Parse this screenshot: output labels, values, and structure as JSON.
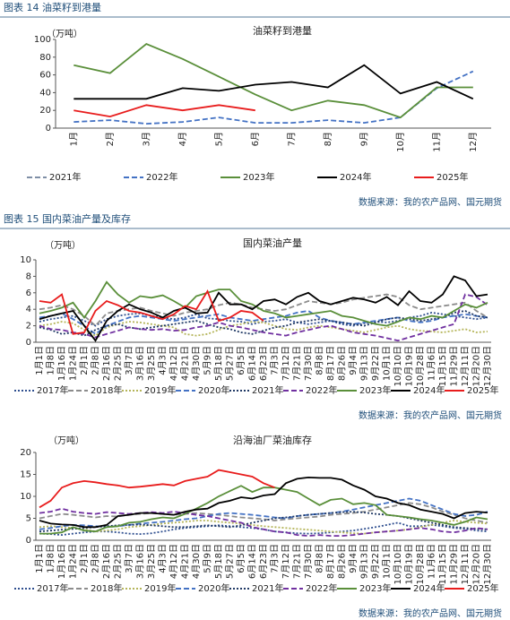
{
  "chart_data": [
    {
      "type": "line",
      "caption": "图表 14 油菜籽到港量",
      "title": "油菜籽到港量",
      "ylabel": "（万吨）",
      "source": "数据来源：我的农产品网、国元期货",
      "categories": [
        "1月",
        "2月",
        "3月",
        "4月",
        "5月",
        "6月",
        "7月",
        "8月",
        "9月",
        "10月",
        "11月",
        "12月"
      ],
      "ylim": [
        0,
        100
      ],
      "yticks": [
        0,
        20,
        40,
        60,
        80,
        100
      ],
      "grid": false,
      "series": [
        {
          "name": "2021年",
          "color": "#7f8fa6",
          "style": "dashed",
          "values": [
            null,
            null,
            null,
            null,
            null,
            null,
            null,
            null,
            null,
            null,
            null,
            null
          ]
        },
        {
          "name": "2022年",
          "color": "#4472c4",
          "style": "dashed",
          "values": [
            7,
            9,
            5,
            7,
            12,
            6,
            6,
            9,
            6,
            12,
            45,
            64
          ]
        },
        {
          "name": "2023年",
          "color": "#5a8f3a",
          "style": "solid",
          "values": [
            71,
            62,
            95,
            78,
            58,
            38,
            20,
            31,
            26,
            12,
            46,
            46
          ]
        },
        {
          "name": "2024年",
          "color": "#000000",
          "style": "solid",
          "values": [
            33,
            33,
            33,
            45,
            42,
            49,
            52,
            46,
            71,
            39,
            52,
            33
          ]
        },
        {
          "name": "2025年",
          "color": "#e81c1c",
          "style": "solid",
          "values": [
            20,
            13,
            26,
            20,
            26,
            20,
            null,
            null,
            null,
            null,
            null,
            null
          ]
        }
      ]
    },
    {
      "type": "line",
      "caption": "图表 15 国内菜油产量及库存",
      "title": "国内菜油产量",
      "ylabel": "（万吨）",
      "source": "数据来源：我的农产品网、国元期货",
      "categories": [
        "1月1日",
        "1月8日",
        "1月16日",
        "1月24日",
        "2月1日",
        "2月8日",
        "2月16日",
        "2月25日",
        "3月7日",
        "3月16日",
        "3月25日",
        "4月3日",
        "4月12日",
        "4月21日",
        "4月30日",
        "5月9日",
        "5月18日",
        "5月27日",
        "6月5日",
        "6月14日",
        "6月23日",
        "7月3日",
        "7月12日",
        "7月21日",
        "7月30日",
        "8月8日",
        "8月17日",
        "8月26日",
        "9月4日",
        "9月13日",
        "9月22日",
        "10月1日",
        "10月10日",
        "10月19日",
        "10月28日",
        "11月6日",
        "11月15日",
        "11月29日",
        "12月11日",
        "12月20日",
        "12月30日"
      ],
      "ylim": [
        0,
        10
      ],
      "yticks": [
        0,
        2,
        4,
        6,
        8,
        10
      ],
      "grid": false,
      "series": [
        {
          "name": "2017年",
          "color": "#2f4f8f",
          "style": "dotted",
          "values": [
            2.5,
            2.8,
            3,
            3.2,
            2.6,
            2,
            2.8,
            3.2,
            3.4,
            3.5,
            3.2,
            3,
            2.8,
            3,
            3.4,
            2.9,
            2.8,
            2.6,
            2.5,
            2.2,
            2.5,
            2.6,
            2.8,
            2.4,
            2.2,
            2.4,
            2.6,
            2.2,
            2,
            2.3,
            2.5,
            2.4,
            2.6,
            3,
            3.2,
            3.6,
            3.4,
            3.2,
            3,
            2.8,
            3
          ]
        },
        {
          "name": "2018年",
          "color": "#8c8c8c",
          "style": "dashed",
          "values": [
            4,
            4.2,
            4.5,
            4,
            3.2,
            2,
            3.5,
            3.8,
            4,
            4.2,
            3.8,
            3.5,
            3.2,
            3.6,
            3.8,
            4,
            4.5,
            4.8,
            4.6,
            4.2,
            4,
            3.8,
            4,
            4.5,
            5,
            4.8,
            4.6,
            4.8,
            5.2,
            5.4,
            5.6,
            5.8,
            5.5,
            4.5,
            4,
            4.2,
            4.4,
            4.6,
            4.8,
            3.8,
            3
          ]
        },
        {
          "name": "2019年",
          "color": "#b5b55a",
          "style": "dotted",
          "values": [
            2,
            2.2,
            2.5,
            2.3,
            1.5,
            0.8,
            1.8,
            2.2,
            2.5,
            2.4,
            2.2,
            2,
            1.8,
            1,
            0.8,
            1,
            1.5,
            2,
            2.2,
            2.5,
            2.4,
            2,
            1.6,
            1.5,
            1.8,
            2,
            1.8,
            1.6,
            1.4,
            1.2,
            1.5,
            1.8,
            2,
            1.6,
            1.4,
            1.3,
            1.2,
            1.4,
            1.6,
            1.2,
            1.3
          ]
        },
        {
          "name": "2020年",
          "color": "#4472c4",
          "style": "dashed",
          "values": [
            3,
            3.2,
            3.5,
            2.8,
            2,
            1,
            2,
            2.5,
            3,
            3.2,
            3,
            2.8,
            2.6,
            2.8,
            3,
            3.2,
            3.4,
            3,
            2.8,
            2.6,
            2.8,
            3,
            3.2,
            3.6,
            3.8,
            3,
            2.6,
            2.4,
            2.2,
            2.4,
            2.6,
            2.8,
            3,
            2.6,
            2.4,
            2.6,
            3,
            3.2,
            3.4,
            3.2,
            3
          ]
        },
        {
          "name": "2021年",
          "color": "#1f3864",
          "style": "dotted",
          "values": [
            1.8,
            1.5,
            1,
            1.2,
            0.8,
            1.5,
            2,
            2.2,
            1.8,
            1.6,
            1.8,
            2,
            2.2,
            2.4,
            2.6,
            2.2,
            1.8,
            1.6,
            1.2,
            1,
            1.4,
            1.8,
            2,
            2.4,
            2.6,
            2.8,
            2.6,
            2.4,
            2.2,
            2,
            2.4,
            2.8,
            3,
            2.8,
            2.6,
            2.8,
            3,
            3.6,
            3.8,
            3.2,
            3
          ]
        },
        {
          "name": "2022年",
          "color": "#7030a0",
          "style": "dashed",
          "values": [
            2,
            1.6,
            1.5,
            1.2,
            1,
            0.6,
            1,
            1.4,
            1.8,
            1.6,
            1.5,
            1.6,
            1.4,
            1.5,
            1.8,
            2,
            2.4,
            2,
            1.8,
            1.5,
            1.2,
            1,
            0.8,
            1.2,
            1.5,
            1.8,
            2,
            1.6,
            1.2,
            1,
            0.8,
            0.5,
            0.2,
            0.6,
            1,
            1.4,
            1.8,
            2.2,
            5.8,
            5.5,
            4.5
          ]
        },
        {
          "name": "2023年",
          "color": "#5a8f3a",
          "style": "solid",
          "values": [
            3.5,
            3.8,
            4.2,
            4.8,
            3,
            5,
            7.3,
            5.8,
            4.8,
            5.6,
            5.4,
            5.7,
            5,
            4.2,
            5.6,
            6,
            6.4,
            6.4,
            5,
            4.6,
            3.8,
            3.5,
            3,
            3.2,
            3.4,
            3.6,
            3.8,
            3.2,
            3,
            2.6,
            2.2,
            2,
            2.5,
            3,
            2.8,
            3.2,
            3,
            3.8,
            4.6,
            4.2,
            4.8
          ]
        },
        {
          "name": "2024年",
          "color": "#000000",
          "style": "solid",
          "values": [
            2.8,
            3.2,
            3.5,
            3.8,
            2,
            0.2,
            2.6,
            3.8,
            4.6,
            4,
            3.6,
            3,
            3.8,
            4.2,
            3.5,
            3.6,
            6,
            4.6,
            4.6,
            4,
            5,
            5.2,
            4.6,
            5.5,
            6,
            5,
            4.6,
            5,
            5.4,
            5.2,
            4.8,
            5.5,
            4.5,
            6.2,
            5,
            4.8,
            5.8,
            8,
            7.5,
            5.6,
            5.8
          ]
        },
        {
          "name": "2025年",
          "color": "#e81c1c",
          "style": "solid",
          "values": [
            5,
            4.8,
            5.8,
            1,
            1.2,
            3.8,
            5,
            4.5,
            3.8,
            3.6,
            3.2,
            2.8,
            3.4,
            4.4,
            4,
            6.2,
            2.6,
            3,
            3.8,
            3.6,
            2.6,
            null,
            null,
            null,
            null,
            null,
            null,
            null,
            null,
            null,
            null,
            null,
            null,
            null,
            null,
            null,
            null,
            null,
            null,
            null,
            null
          ]
        }
      ]
    },
    {
      "type": "line",
      "title": "沿海油厂菜油库存",
      "ylabel": "（万吨）",
      "source": "数据来源：我的农产品网、国元期货",
      "categories": [
        "1月1日",
        "1月8日",
        "1月16日",
        "1月24日",
        "2月1日",
        "2月8日",
        "2月16日",
        "2月25日",
        "3月7日",
        "3月16日",
        "3月25日",
        "4月3日",
        "4月12日",
        "4月21日",
        "4月30日",
        "5月9日",
        "5月18日",
        "5月27日",
        "6月5日",
        "6月14日",
        "6月23日",
        "7月3日",
        "7月12日",
        "7月21日",
        "7月30日",
        "8月8日",
        "8月17日",
        "8月26日",
        "9月4日",
        "9月13日",
        "9月22日",
        "10月1日",
        "10月10日",
        "10月19日",
        "10月28日",
        "11月6日",
        "11月15日",
        "11月29日",
        "12月11日",
        "12月20日",
        "12月30日"
      ],
      "ylim": [
        0,
        20
      ],
      "yticks": [
        0,
        5,
        10,
        15,
        20
      ],
      "grid": false,
      "series": [
        {
          "name": "2017年",
          "color": "#2f4f8f",
          "style": "dotted",
          "values": [
            1.5,
            1.4,
            1.2,
            1.5,
            1.8,
            2,
            2,
            1.8,
            1.5,
            1.4,
            1.6,
            2,
            2.5,
            2.8,
            3,
            3.2,
            3.4,
            3.2,
            3,
            2.8,
            2.5,
            2,
            1.8,
            1.6,
            1.5,
            1.6,
            1.8,
            2,
            2.2,
            2.6,
            3,
            3.5,
            4,
            3.2,
            3.2,
            3.5,
            3.2,
            2.8,
            2.6,
            2.2,
            2
          ]
        },
        {
          "name": "2018年",
          "color": "#8c8c8c",
          "style": "dashed",
          "values": [
            5,
            5.5,
            6,
            5.8,
            5.5,
            5.2,
            5.5,
            5.4,
            5.8,
            6,
            6.2,
            6,
            5.8,
            6,
            6.2,
            6,
            5.8,
            5.5,
            5.2,
            5,
            4.8,
            4.5,
            4.8,
            5,
            5.2,
            5.4,
            5.8,
            6,
            6.2,
            6.5,
            7,
            7.5,
            8,
            8.5,
            8.2,
            7.5,
            6.5,
            5.8,
            5,
            4.5,
            4
          ]
        },
        {
          "name": "2019年",
          "color": "#b5b55a",
          "style": "dotted",
          "values": [
            3,
            3.2,
            3,
            2.8,
            2.5,
            2,
            2.2,
            2.5,
            3,
            3.2,
            3.5,
            3.8,
            4,
            4.2,
            4.5,
            4.5,
            4.2,
            4,
            3.8,
            3.5,
            3.2,
            3,
            2.8,
            2.6,
            2.4,
            2.2,
            2,
            1.8,
            1.6,
            1.5,
            1.8,
            2,
            2.2,
            2.5,
            3,
            3.5,
            4,
            4.5,
            4.2,
            4,
            3.8
          ]
        },
        {
          "name": "2020年",
          "color": "#4472c4",
          "style": "dashed",
          "values": [
            2.5,
            2.8,
            3.2,
            3.5,
            3.4,
            3.2,
            3,
            3.2,
            3.5,
            3.8,
            4,
            4.2,
            4.5,
            4.8,
            5,
            5.5,
            6,
            6.2,
            6,
            5.8,
            5.5,
            5.2,
            5,
            5.5,
            5.8,
            6,
            6.2,
            6.5,
            7,
            7.5,
            8,
            8.5,
            9,
            9.5,
            9,
            8,
            7,
            6,
            5.5,
            5.8,
            6.5
          ]
        },
        {
          "name": "2021年",
          "color": "#1f3864",
          "style": "dotted",
          "values": [
            2,
            2.2,
            2.4,
            2.6,
            2.8,
            3,
            3.2,
            3.4,
            3.5,
            3.6,
            3.4,
            3.2,
            3,
            3,
            3.2,
            3.4,
            3.2,
            3,
            3.4,
            4,
            4.5,
            5,
            5.2,
            5.5,
            5.8,
            6,
            6.2,
            6.4,
            6.5,
            6.3,
            6,
            5.8,
            5.5,
            5,
            4.5,
            4,
            3.5,
            3,
            2.8,
            2.6,
            2.5
          ]
        },
        {
          "name": "2022年",
          "color": "#7030a0",
          "style": "dashed",
          "values": [
            6.2,
            6.5,
            7.2,
            6.5,
            6.2,
            6,
            6.4,
            6.2,
            6,
            6.2,
            6.4,
            6.2,
            6.5,
            6.2,
            5.8,
            5.5,
            5,
            4.5,
            4,
            3,
            2.5,
            2,
            1.8,
            1.2,
            1,
            1.2,
            1,
            1,
            1.2,
            1.5,
            1.8,
            2,
            2.2,
            2.5,
            2.8,
            2.5,
            2,
            1.8,
            2.2,
            2.8,
            2.5
          ]
        },
        {
          "name": "2023年",
          "color": "#5a8f3a",
          "style": "solid",
          "values": [
            1.5,
            1.5,
            1.8,
            3,
            2.2,
            2,
            3,
            3.2,
            4,
            4.2,
            4.8,
            5.2,
            5,
            6,
            7.2,
            8.5,
            10,
            11.2,
            12.4,
            11,
            12,
            12,
            11.5,
            11,
            9.5,
            8,
            9.2,
            9.5,
            8.2,
            8.5,
            8,
            5.8,
            5.5,
            5.2,
            4.8,
            4.5,
            4,
            3.5,
            4.2,
            5.2,
            4.8
          ]
        },
        {
          "name": "2024年",
          "color": "#000000",
          "style": "solid",
          "values": [
            4.5,
            3.8,
            3.6,
            3.5,
            3,
            3,
            3.5,
            5.5,
            5.8,
            6.2,
            6.2,
            6,
            5.8,
            6.5,
            7,
            7.2,
            8.5,
            9,
            9.8,
            9.5,
            10.2,
            10.5,
            13,
            14,
            14.3,
            14.2,
            14.2,
            13.8,
            12.5,
            11.5,
            10,
            9.5,
            8.5,
            8,
            7,
            6.5,
            6,
            5,
            6.2,
            6.5,
            6.3
          ]
        },
        {
          "name": "2025年",
          "color": "#e81c1c",
          "style": "solid",
          "values": [
            7.5,
            9,
            12,
            13,
            13.5,
            13.2,
            12.8,
            12.5,
            12,
            12.2,
            12.5,
            12.8,
            12.5,
            13.5,
            14,
            14.5,
            16,
            15.5,
            15,
            14.5,
            13,
            12,
            null,
            null,
            null,
            null,
            null,
            null,
            null,
            null,
            null,
            null,
            null,
            null,
            null,
            null,
            null,
            null,
            null,
            null,
            null
          ]
        }
      ]
    }
  ]
}
